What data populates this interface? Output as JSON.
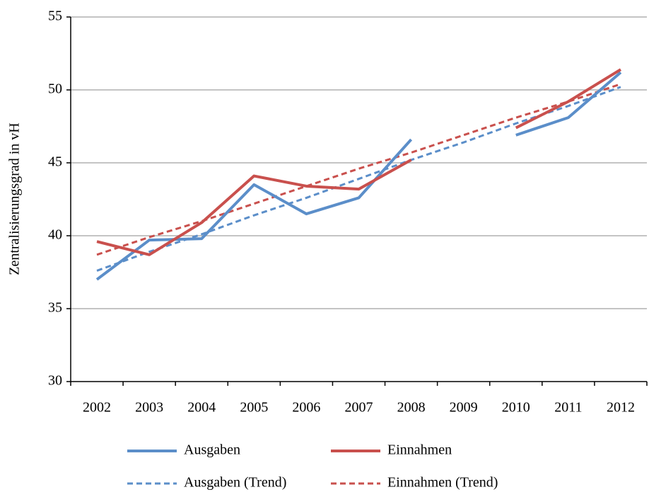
{
  "chart_data": {
    "type": "line",
    "ylabel": "Zentralisierungsgrad in vH",
    "categories": [
      "2002",
      "2003",
      "2004",
      "2005",
      "2006",
      "2007",
      "2008",
      "2009",
      "2010",
      "2011",
      "2012"
    ],
    "series": [
      {
        "name": "Ausgaben",
        "color": "#5b8ec9",
        "style": "solid",
        "values": [
          37.0,
          39.7,
          39.8,
          43.5,
          41.5,
          42.6,
          46.6,
          null,
          46.9,
          48.1,
          51.2
        ]
      },
      {
        "name": "Einnahmen",
        "color": "#c9504d",
        "style": "solid",
        "values": [
          39.6,
          38.7,
          40.9,
          44.1,
          43.4,
          43.2,
          45.2,
          null,
          47.4,
          49.2,
          51.4
        ]
      },
      {
        "name": "Ausgaben (Trend)",
        "color": "#5b8ec9",
        "style": "dashed",
        "values": [
          37.6,
          38.9,
          40.1,
          41.4,
          42.6,
          43.9,
          45.2,
          46.4,
          47.7,
          48.9,
          50.2
        ]
      },
      {
        "name": "Einnahmen (Trend)",
        "color": "#c9504d",
        "style": "dashed",
        "values": [
          38.7,
          39.9,
          41.0,
          42.2,
          43.4,
          44.6,
          45.7,
          46.9,
          48.1,
          49.2,
          50.4
        ]
      }
    ],
    "ylim": [
      30,
      55
    ],
    "yticks": [
      30,
      35,
      40,
      45,
      50,
      55
    ],
    "grid": true,
    "legend": "bottom"
  }
}
